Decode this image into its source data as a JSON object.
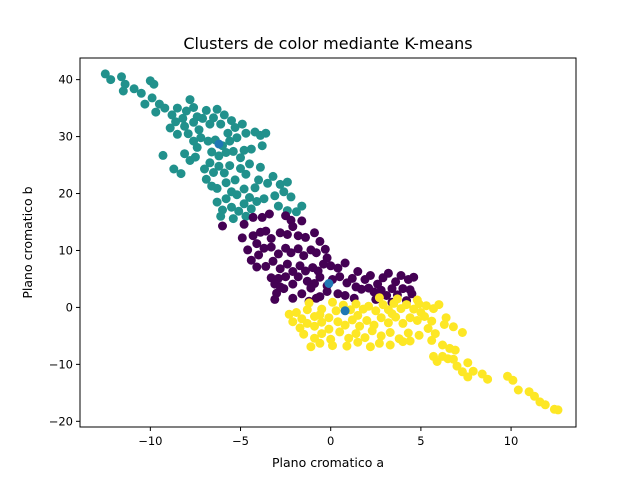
{
  "chart_data": {
    "type": "scatter",
    "title": "Clusters de color mediante K-means",
    "xlabel": "Plano cromatico a",
    "ylabel": "Plano cromatico b",
    "xlim": [
      -13.9,
      13.6
    ],
    "ylim": [
      -21.0,
      43.8
    ],
    "xticks": [
      -10,
      -5,
      0,
      5,
      10
    ],
    "yticks": [
      -20,
      -10,
      0,
      10,
      20,
      30,
      40
    ],
    "grid": false,
    "colors": {
      "teal": "#21918c",
      "purple": "#440154",
      "yellow": "#fde725",
      "centroid": "#1f77b4"
    },
    "series": [
      {
        "color_key": "teal",
        "points": [
          [
            -12.5,
            41
          ],
          [
            -12.2,
            40
          ],
          [
            -11.6,
            40.5
          ],
          [
            -11.4,
            39.2
          ],
          [
            -11.5,
            38
          ],
          [
            -10.9,
            38.4
          ],
          [
            -10.5,
            37.6
          ],
          [
            -10.3,
            35.7
          ],
          [
            -10,
            39.8
          ],
          [
            -9.8,
            39.2
          ],
          [
            -9.9,
            36.8
          ],
          [
            -9.5,
            35.7
          ],
          [
            -9.7,
            34.3
          ],
          [
            -9.2,
            35
          ],
          [
            -8.8,
            33.8
          ],
          [
            -8.5,
            35
          ],
          [
            -8.6,
            32.6
          ],
          [
            -8.2,
            33.2
          ],
          [
            -8,
            34.5
          ],
          [
            -7.8,
            36.5
          ],
          [
            -7.6,
            35.1
          ],
          [
            -7.4,
            33.5
          ],
          [
            -8.9,
            31.5
          ],
          [
            -8.5,
            30.4
          ],
          [
            -8.1,
            31.8
          ],
          [
            -7.9,
            30.5
          ],
          [
            -7.6,
            32.5
          ],
          [
            -7.3,
            31.2
          ],
          [
            -7.1,
            33.2
          ],
          [
            -6.9,
            34.6
          ],
          [
            -6.7,
            32.2
          ],
          [
            -6.5,
            33.3
          ],
          [
            -6.3,
            34.8
          ],
          [
            -6.1,
            32.2
          ],
          [
            -5.9,
            33.8
          ],
          [
            -5.7,
            30.6
          ],
          [
            -5.5,
            32.8
          ],
          [
            -5.3,
            31.6
          ],
          [
            -5.6,
            29.2
          ],
          [
            -5.2,
            29.8
          ],
          [
            -4.9,
            32.2
          ],
          [
            -4.7,
            30.6
          ],
          [
            -4.2,
            30.8
          ],
          [
            -3.9,
            30.2
          ],
          [
            -3.6,
            30.6
          ],
          [
            -3.8,
            28.4
          ],
          [
            -4.4,
            27.8
          ],
          [
            -7.6,
            29.2
          ],
          [
            -7.4,
            28.1
          ],
          [
            -7.2,
            29.8
          ],
          [
            -6.8,
            29.2
          ],
          [
            -6.6,
            27.3
          ],
          [
            -6.4,
            29.4
          ],
          [
            -6.2,
            26.6
          ],
          [
            -6,
            28.4
          ],
          [
            -5.8,
            27.2
          ],
          [
            -5.4,
            27.4
          ],
          [
            -5,
            26.3
          ],
          [
            -4.8,
            27.6
          ],
          [
            -8.1,
            27
          ],
          [
            -7.8,
            25.8
          ],
          [
            -7.5,
            26.4
          ],
          [
            -7,
            24.3
          ],
          [
            -6.7,
            25.4
          ],
          [
            -6.5,
            23.7
          ],
          [
            -6.2,
            24.8
          ],
          [
            -5.9,
            23.6
          ],
          [
            -5.6,
            24.9
          ],
          [
            -5.3,
            22.4
          ],
          [
            -5,
            24.4
          ],
          [
            -4.7,
            23.4
          ],
          [
            -4.5,
            25.2
          ],
          [
            -9.3,
            26.7
          ],
          [
            -8.7,
            24.3
          ],
          [
            -8.3,
            23.5
          ],
          [
            -6.9,
            22.5
          ],
          [
            -6.6,
            21.3
          ],
          [
            -6.3,
            20.9
          ],
          [
            -5.8,
            21.9
          ],
          [
            -5.5,
            20.3
          ],
          [
            -5.2,
            19.8
          ],
          [
            -4.8,
            20.8
          ],
          [
            -4.5,
            19.3
          ],
          [
            -4.2,
            21
          ],
          [
            -4,
            22.4
          ],
          [
            -3.9,
            24.6
          ],
          [
            -3.5,
            21.8
          ],
          [
            -3.2,
            23
          ],
          [
            -3.1,
            19.6
          ],
          [
            -2.8,
            21.6
          ],
          [
            -2.6,
            20.3
          ],
          [
            -2.4,
            22
          ],
          [
            -2.2,
            19.4
          ],
          [
            -6.3,
            18.5
          ],
          [
            -6,
            17.1
          ],
          [
            -5.8,
            19.1
          ],
          [
            -5.5,
            17.6
          ],
          [
            -5.1,
            16.9
          ],
          [
            -4.8,
            18.2
          ],
          [
            -4.4,
            17.3
          ],
          [
            -4.1,
            18.6
          ],
          [
            -3.7,
            19.1
          ],
          [
            -2.9,
            17.8
          ],
          [
            -6.1,
            16
          ],
          [
            -5.4,
            15.6
          ],
          [
            -4.7,
            16
          ],
          [
            -1.6,
            17.8
          ],
          [
            -1.9,
            16.8
          ],
          [
            -2.4,
            17
          ]
        ]
      },
      {
        "color_key": "purple",
        "points": [
          [
            -6,
            14.3
          ],
          [
            -4.8,
            14.6
          ],
          [
            -4.3,
            15.8
          ],
          [
            -3.8,
            15.8
          ],
          [
            -3.4,
            16.4
          ],
          [
            -2.5,
            16.1
          ],
          [
            -2.2,
            15.3
          ],
          [
            -1.6,
            15.2
          ],
          [
            -4.9,
            12.2
          ],
          [
            -4.3,
            12.6
          ],
          [
            -4.1,
            11.2
          ],
          [
            -3.9,
            13.2
          ],
          [
            -3.6,
            13.4
          ],
          [
            -3.3,
            12.1
          ],
          [
            -2.8,
            13.1
          ],
          [
            -2.4,
            12.8
          ],
          [
            -2.1,
            14.2
          ],
          [
            -1.8,
            12.6
          ],
          [
            -1.4,
            12.3
          ],
          [
            -0.9,
            13.1
          ],
          [
            -0.6,
            11.6
          ],
          [
            -4.6,
            10.1
          ],
          [
            -4,
            9.2
          ],
          [
            -3.7,
            10.4
          ],
          [
            -3.3,
            10.6
          ],
          [
            -2.9,
            9.4
          ],
          [
            -2.5,
            10.4
          ],
          [
            -2.2,
            9.6
          ],
          [
            -1.8,
            10.3
          ],
          [
            -1.5,
            9.1
          ],
          [
            -1.1,
            10.1
          ],
          [
            -0.8,
            9.6
          ],
          [
            -0.3,
            10.2
          ],
          [
            -0.2,
            8.7
          ],
          [
            -4.4,
            8.3
          ],
          [
            -4.1,
            7.1
          ],
          [
            -3.6,
            7.2
          ],
          [
            -3.2,
            8.1
          ],
          [
            -2.8,
            6.8
          ],
          [
            -2.4,
            7.6
          ],
          [
            -2.1,
            6.3
          ],
          [
            -1.7,
            7.3
          ],
          [
            -1.4,
            6.4
          ],
          [
            -1,
            7
          ],
          [
            -0.7,
            6.4
          ],
          [
            -0.4,
            7.6
          ],
          [
            0,
            7.3
          ],
          [
            0.4,
            6.9
          ],
          [
            0.8,
            7.8
          ],
          [
            -3.3,
            5.2
          ],
          [
            -2.9,
            5.1
          ],
          [
            -2.5,
            5.4
          ],
          [
            -2.1,
            4.1
          ],
          [
            -1.8,
            5.4
          ],
          [
            -1.3,
            4.6
          ],
          [
            -0.9,
            4.2
          ],
          [
            -0.6,
            5.3
          ],
          [
            -0.2,
            3.8
          ],
          [
            0.1,
            4.9
          ],
          [
            0.5,
            5.4
          ],
          [
            0.9,
            4.3
          ],
          [
            1.2,
            5.1
          ],
          [
            1.5,
            6.3
          ],
          [
            1.9,
            4.9
          ],
          [
            2.2,
            5.6
          ],
          [
            2.6,
            4.1
          ],
          [
            2.9,
            5.2
          ],
          [
            3.2,
            6
          ],
          [
            3.6,
            4.5
          ],
          [
            3.9,
            5.6
          ],
          [
            4.3,
            4.9
          ],
          [
            4.6,
            5.3
          ],
          [
            1.7,
            3.2
          ],
          [
            2.1,
            3.4
          ],
          [
            2.4,
            2.7
          ],
          [
            2.8,
            3
          ],
          [
            3.1,
            2.1
          ],
          [
            3.4,
            3.3
          ],
          [
            3.7,
            2.2
          ],
          [
            4,
            3.3
          ],
          [
            4.4,
            3.1
          ],
          [
            3.4,
            0.9
          ],
          [
            4.2,
            1.2
          ],
          [
            4.5,
            2.4
          ],
          [
            -3,
            2.5
          ],
          [
            -2.6,
            3.3
          ],
          [
            -2.1,
            1.6
          ],
          [
            -1.6,
            2.4
          ],
          [
            -1.1,
            3.4
          ],
          [
            -0.6,
            1.9
          ],
          [
            -0.2,
            2.8
          ],
          [
            0.4,
            2.4
          ],
          [
            0.8,
            2.1
          ],
          [
            1.3,
            1.6
          ],
          [
            -3.1,
            1.4
          ],
          [
            -1.2,
            1.1
          ],
          [
            -0.8,
            1.6
          ],
          [
            1.4,
            3.6
          ],
          [
            2.5,
            1.4
          ],
          [
            -3.1,
            4.1
          ],
          [
            -2.8,
            3.6
          ]
        ]
      },
      {
        "color_key": "yellow",
        "points": [
          [
            -2.3,
            -1.2
          ],
          [
            -2.1,
            -2.5
          ],
          [
            -1.9,
            -0.9
          ],
          [
            -1.6,
            -2
          ],
          [
            -1.3,
            -0.4
          ],
          [
            -0.9,
            -1.6
          ],
          [
            -0.5,
            -0.3
          ],
          [
            -0.1,
            -1.8
          ],
          [
            0.3,
            -0.6
          ],
          [
            0.7,
            0.4
          ],
          [
            1.1,
            -0.4
          ],
          [
            1.4,
            0.6
          ],
          [
            1.8,
            -0.3
          ],
          [
            2.1,
            0.2
          ],
          [
            2.5,
            -0.6
          ],
          [
            2.9,
            0.5
          ],
          [
            3.2,
            -0.4
          ],
          [
            3.5,
            0.7
          ],
          [
            3.9,
            -0.2
          ],
          [
            4.2,
            0.5
          ],
          [
            4.6,
            -0.3
          ],
          [
            4.9,
            0.6
          ],
          [
            5.3,
            0.3
          ],
          [
            5.7,
            -0.2
          ],
          [
            6,
            0.5
          ],
          [
            -1.7,
            -3.6
          ],
          [
            -1.3,
            -2.8
          ],
          [
            -0.9,
            -3.3
          ],
          [
            -0.5,
            -2.6
          ],
          [
            -0.1,
            -3.8
          ],
          [
            0.4,
            -2.5
          ],
          [
            0.8,
            -3.1
          ],
          [
            1.2,
            -2.2
          ],
          [
            1.6,
            -3.3
          ],
          [
            2,
            -2.3
          ],
          [
            2.4,
            -3.1
          ],
          [
            2.8,
            -1.8
          ],
          [
            3.2,
            -2.7
          ],
          [
            3.6,
            -1.7
          ],
          [
            4,
            -2.8
          ],
          [
            4.4,
            -1.8
          ],
          [
            4.8,
            -2.3
          ],
          [
            5.2,
            -1.6
          ],
          [
            5.6,
            -2.4
          ],
          [
            -1.5,
            -4.7
          ],
          [
            -0.9,
            -5.4
          ],
          [
            -0.5,
            -4.6
          ],
          [
            0,
            -5.6
          ],
          [
            0.5,
            -4.3
          ],
          [
            1,
            -5.4
          ],
          [
            1.4,
            -4.6
          ],
          [
            1.9,
            -5.3
          ],
          [
            2.3,
            -4.1
          ],
          [
            2.8,
            -5
          ],
          [
            3.3,
            -4.4
          ],
          [
            3.8,
            -5.5
          ],
          [
            4.3,
            -4.5
          ],
          [
            4.9,
            -4.9
          ],
          [
            5.4,
            -3.7
          ],
          [
            5.8,
            -4.6
          ],
          [
            -1.1,
            -6.9
          ],
          [
            -0.6,
            -6.3
          ],
          [
            0.1,
            -6.7
          ],
          [
            0.9,
            -6.8
          ],
          [
            1.5,
            -6.1
          ],
          [
            2.2,
            -6.9
          ],
          [
            2.7,
            -6.3
          ],
          [
            3.3,
            -6.6
          ],
          [
            4,
            -6
          ],
          [
            4.4,
            -5.9
          ],
          [
            -0.6,
            -1.3
          ],
          [
            1.5,
            -1.4
          ],
          [
            3.4,
            -1.1
          ],
          [
            5,
            -0.9
          ],
          [
            6.4,
            -1.8
          ],
          [
            6.8,
            -3.4
          ],
          [
            5.6,
            -5.8
          ],
          [
            6.3,
            -3
          ],
          [
            6.2,
            -6.6
          ],
          [
            6.6,
            -7.2
          ],
          [
            5.7,
            -8.6
          ],
          [
            6.2,
            -8.6
          ],
          [
            6.5,
            -9
          ],
          [
            5.9,
            -9.5
          ],
          [
            6.8,
            -9.1
          ],
          [
            7,
            -10.3
          ],
          [
            7.3,
            -11.3
          ],
          [
            7.6,
            -9.7
          ],
          [
            7.9,
            -11.2
          ],
          [
            8.4,
            -11.7
          ],
          [
            8.7,
            -12.6
          ],
          [
            7.6,
            -12.2
          ],
          [
            6.9,
            -7.5
          ],
          [
            7.3,
            -4.4
          ],
          [
            9.8,
            -12.1
          ],
          [
            10.1,
            -12.8
          ],
          [
            10.4,
            -14.5
          ],
          [
            11,
            -14.8
          ],
          [
            11.3,
            -15.6
          ],
          [
            11.6,
            -16.6
          ],
          [
            11.9,
            -17.1
          ],
          [
            12.4,
            -17.9
          ],
          [
            12.6,
            -18
          ],
          [
            -1.2,
            0.8
          ],
          [
            0.1,
            0.9
          ],
          [
            2.7,
            1.7
          ],
          [
            3.7,
            1.5
          ],
          [
            4.8,
            1.3
          ]
        ]
      },
      {
        "color_key": "centroid",
        "points": [
          [
            -6.2,
            28.7
          ],
          [
            -0.1,
            4.2
          ],
          [
            0.8,
            -0.6
          ]
        ]
      }
    ]
  }
}
